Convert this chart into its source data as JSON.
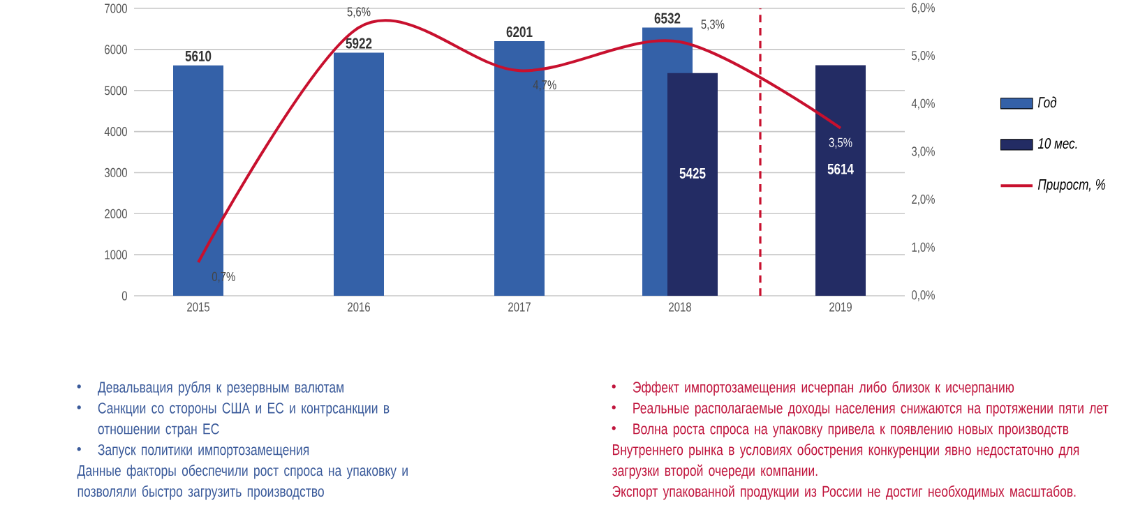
{
  "chart_data": {
    "type": "bar",
    "x": [
      2015,
      2016,
      2017,
      2018,
      2019
    ],
    "xlim": [
      2014.6,
      2019.4
    ],
    "xticks": [
      2015,
      2016,
      2017,
      2018,
      2019
    ],
    "series": [
      {
        "name": "Год",
        "color": "#3461a8",
        "values": [
          5610,
          5922,
          6201,
          6532,
          null
        ],
        "value_labels": [
          "5610",
          "5922",
          "6201",
          "6532",
          null
        ]
      },
      {
        "name": "10 мес.",
        "color": "#232c64",
        "values": [
          null,
          null,
          null,
          5425,
          5614
        ],
        "value_labels": [
          null,
          null,
          null,
          "5425",
          "5614"
        ]
      },
      {
        "name": "Прирост, %",
        "type": "line",
        "axis": "y2",
        "color": "#c8102e",
        "values": [
          0.7,
          5.6,
          4.7,
          5.3,
          3.5
        ],
        "value_labels": [
          "0,7%",
          "5,6%",
          "4,7%",
          "5,3%",
          "3,5%"
        ]
      }
    ],
    "ylim": [
      0,
      7000
    ],
    "yticks": [
      0,
      1000,
      2000,
      3000,
      4000,
      5000,
      6000,
      7000
    ],
    "y2lim": [
      0,
      6
    ],
    "y2ticks": [
      {
        "value": 0,
        "label": "0,0%"
      },
      {
        "value": 1,
        "label": "1,0%"
      },
      {
        "value": 2,
        "label": "2,0%"
      },
      {
        "value": 3,
        "label": "3,0%"
      },
      {
        "value": 4,
        "label": "4,0%"
      },
      {
        "value": 5,
        "label": "5,0%"
      },
      {
        "value": 6,
        "label": "6,0%"
      }
    ],
    "grid": "y",
    "legend": "right",
    "ref_lines": [
      {
        "axis": "x",
        "value": 2018.5,
        "color": "#c8102e",
        "line_style": "dashed"
      }
    ],
    "annotations": [
      "Девальвация рубля к резервным валютам",
      "Санкции со стороны США и ЕС и контрсанкции в отношении стран ЕС",
      "Запуск политики импортозамещения",
      "Данные факторы обеспечили рост спроса на упаковку и позволяли быстро загрузить производство",
      "Эффект импортозамещения исчерпан либо близок к исчерпанию",
      "Реальные располагаемые доходы населения снижаются на протяжении пяти лет",
      "Волна роста спроса на упаковку привела к появлению новых производств",
      "Внутреннего рынка в условиях обострения конкуренции явно недостаточно для загрузки второй очереди компании.",
      "Экспорт упакованной продукции из России не достиг необходимых масштабов."
    ]
  }
}
